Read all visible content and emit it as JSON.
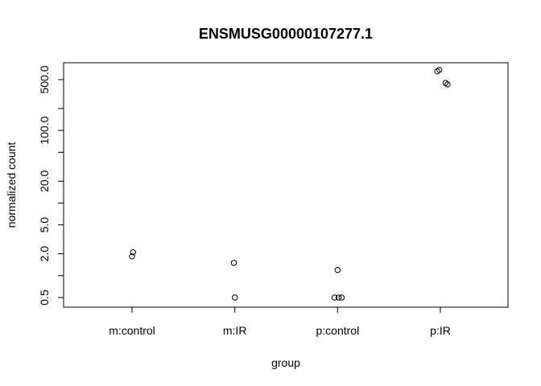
{
  "chart_data": {
    "type": "scatter",
    "title": "ENSMUSG00000107277.1",
    "xlabel": "group",
    "ylabel": "normalized count",
    "log_y": true,
    "ylim": [
      0.4,
      900
    ],
    "categories": [
      "m:control",
      "m:IR",
      "p:control",
      "p:IR"
    ],
    "ytick_labels": [
      "0.5",
      "2.0",
      "5.0",
      "20.0",
      "100.0",
      "500.0"
    ],
    "yticks_major": [
      0.5,
      2,
      5,
      20,
      100,
      500
    ],
    "yticks_minor": [
      1,
      10,
      50,
      200
    ],
    "grid": false,
    "points": [
      {
        "group": "m:control",
        "jitter": 0.0,
        "y": 1.85
      },
      {
        "group": "m:control",
        "jitter": 0.01,
        "y": 2.1
      },
      {
        "group": "m:IR",
        "jitter": -0.01,
        "y": 1.5
      },
      {
        "group": "m:IR",
        "jitter": 0.0,
        "y": 0.5
      },
      {
        "group": "p:control",
        "jitter": 0.0,
        "y": 1.2
      },
      {
        "group": "p:control",
        "jitter": -0.03,
        "y": 0.5
      },
      {
        "group": "p:control",
        "jitter": 0.01,
        "y": 0.5
      },
      {
        "group": "p:control",
        "jitter": 0.04,
        "y": 0.5
      },
      {
        "group": "p:IR",
        "jitter": -0.03,
        "y": 650
      },
      {
        "group": "p:IR",
        "jitter": -0.01,
        "y": 680
      },
      {
        "group": "p:IR",
        "jitter": 0.05,
        "y": 450
      },
      {
        "group": "p:IR",
        "jitter": 0.07,
        "y": 430
      }
    ]
  }
}
